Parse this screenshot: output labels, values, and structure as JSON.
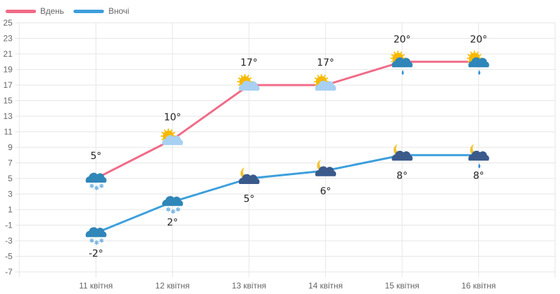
{
  "legend": {
    "day_label": "Вдень",
    "night_label": "Вночі",
    "day_color": "#f06b87",
    "night_color": "#3d9fdc"
  },
  "chart_data": {
    "type": "line",
    "title": "",
    "xlabel": "",
    "ylabel": "",
    "categories": [
      "11 квітня",
      "12 квітня",
      "13 квітня",
      "14 квітня",
      "15 квітня",
      "16 квітня"
    ],
    "series": [
      {
        "name": "Вдень",
        "color": "#f06b87",
        "values": [
          5,
          10,
          17,
          17,
          20,
          20
        ],
        "labels": [
          "5°",
          "10°",
          "17°",
          "17°",
          "20°",
          "20°"
        ],
        "icons": [
          "cloud-snow-icon",
          "sun-cloud-icon",
          "sun-cloud-icon",
          "sun-cloud-icon",
          "sun-cloud-rain-icon",
          "sun-cloud-rain-icon"
        ]
      },
      {
        "name": "Вночі",
        "color": "#3d9fdc",
        "values": [
          -2,
          2,
          5,
          6,
          8,
          8
        ],
        "labels": [
          "-2°",
          "2°",
          "5°",
          "6°",
          "8°",
          "8°"
        ],
        "icons": [
          "cloud-snow-icon",
          "cloud-snow-icon",
          "moon-cloud-icon",
          "moon-cloud-icon",
          "moon-cloud-icon",
          "moon-cloud-rain-icon"
        ]
      }
    ],
    "yticks": [
      25,
      23,
      21,
      19,
      17,
      15,
      13,
      11,
      9,
      7,
      5,
      3,
      1,
      -1,
      -3,
      -5,
      -7
    ],
    "ylim": [
      -7,
      25
    ],
    "grid": true,
    "legend_position": "top-left"
  }
}
